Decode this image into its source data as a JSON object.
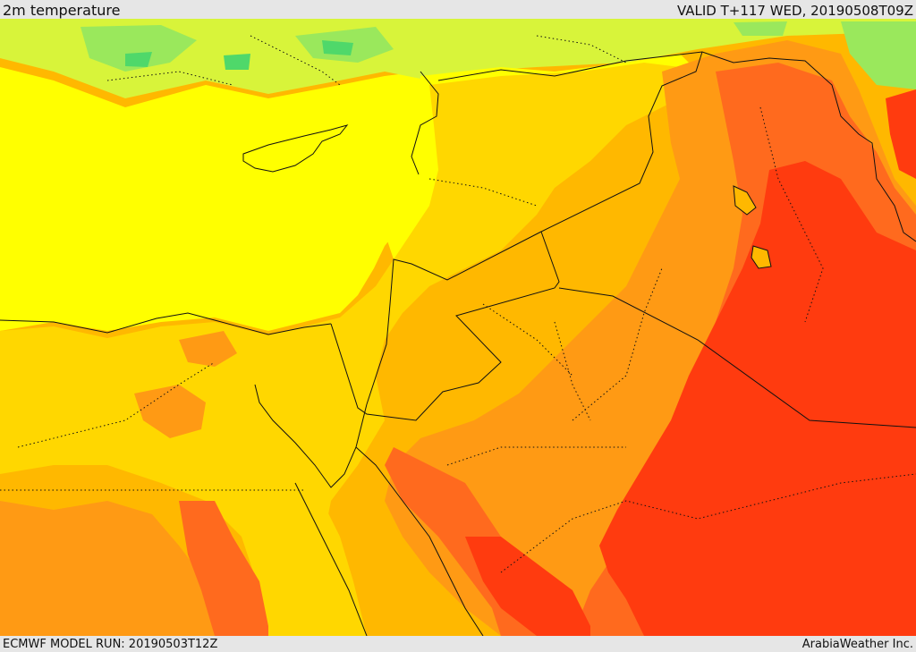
{
  "header": {
    "title": "2m temperature",
    "valid": "VALID T+117 WED, 20190508T09Z"
  },
  "footer": {
    "model_run": "ECMWF MODEL RUN: 20190503T12Z",
    "provider": "ArabiaWeather Inc."
  },
  "map": {
    "field": "2m temperature",
    "palette": {
      "green_light": "#9ae85c",
      "green": "#4fd86a",
      "yellow_green": "#d8f43a",
      "yellow": "#ffff00",
      "gold": "#ffd700",
      "orange_light": "#ffb800",
      "orange": "#ff9a14",
      "orange_red": "#ff6a1e",
      "red": "#ff3b0f",
      "outline": "#111111"
    }
  }
}
